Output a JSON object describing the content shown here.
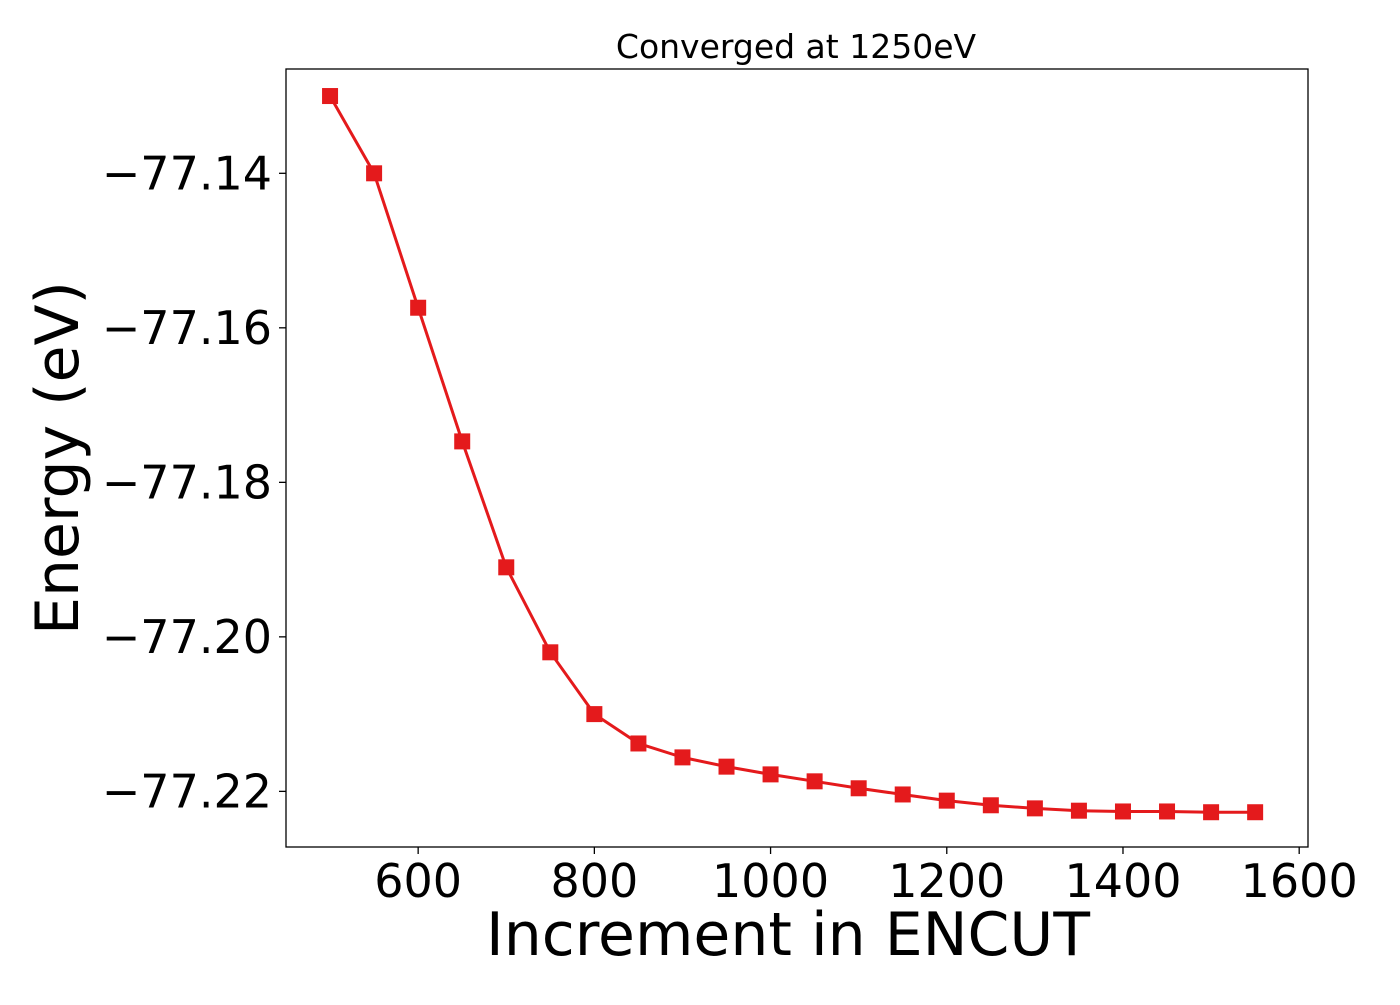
{
  "chart_data": {
    "type": "line",
    "title": "Converged at 1250eV",
    "xlabel": "Increment in ENCUT",
    "ylabel": "Energy (eV)",
    "xlim": [
      450,
      1610
    ],
    "ylim": [
      -77.2272,
      -77.1265
    ],
    "xticks": [
      600,
      800,
      1000,
      1200,
      1400,
      1600
    ],
    "xtick_labels": [
      "600",
      "800",
      "1000",
      "1200",
      "1400",
      "1600"
    ],
    "yticks": [
      -77.14,
      -77.16,
      -77.18,
      -77.2,
      -77.22
    ],
    "ytick_labels": [
      "−77.14",
      "−77.16",
      "−77.18",
      "−77.20",
      "−77.22"
    ],
    "grid": false,
    "legend": "none",
    "series": [
      {
        "color": "#e41a1c",
        "marker": "square",
        "x": [
          500,
          550,
          600,
          650,
          700,
          750,
          800,
          850,
          900,
          950,
          1000,
          1050,
          1100,
          1150,
          1200,
          1250,
          1300,
          1350,
          1400,
          1450,
          1500,
          1550
        ],
        "y": [
          -77.13,
          -77.14,
          -77.1574,
          -77.1747,
          -77.191,
          -77.202,
          -77.21,
          -77.2138,
          -77.2156,
          -77.2168,
          -77.2178,
          -77.2187,
          -77.2196,
          -77.2204,
          -77.2212,
          -77.2218,
          -77.2222,
          -77.2225,
          -77.2226,
          -77.2226,
          -77.2227,
          -77.2227
        ]
      }
    ]
  }
}
